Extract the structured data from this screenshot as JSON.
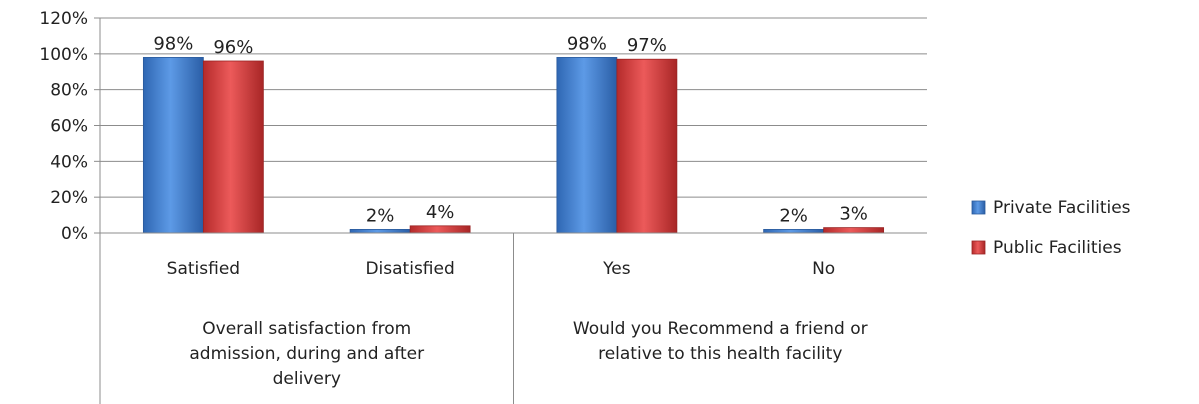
{
  "chart_data": {
    "type": "bar",
    "title": "",
    "xlabel": "",
    "ylabel": "",
    "ylim": [
      0,
      120
    ],
    "yticks": [
      "0%",
      "20%",
      "40%",
      "60%",
      "80%",
      "100%",
      "120%"
    ],
    "grid": true,
    "legend_position": "right",
    "categories": [
      "Satisfied",
      "Disatisfied",
      "Yes",
      "No"
    ],
    "groups": [
      {
        "label_lines": [
          "Overall satisfaction from",
          "admission, during and after",
          "delivery"
        ],
        "categories": [
          0,
          1
        ]
      },
      {
        "label_lines": [
          "Would you Recommend a friend or",
          "relative to this health facility"
        ],
        "categories": [
          2,
          3
        ]
      }
    ],
    "series": [
      {
        "name": "Private Facilities",
        "values": [
          98,
          2,
          98,
          2
        ],
        "labels": [
          "98%",
          "2%",
          "98%",
          "2%"
        ],
        "color": "#3f7fd0"
      },
      {
        "name": "Public Facilities",
        "values": [
          96,
          4,
          97,
          3
        ],
        "labels": [
          "96%",
          "4%",
          "97%",
          "3%"
        ],
        "color": "#d83d3d"
      }
    ]
  }
}
